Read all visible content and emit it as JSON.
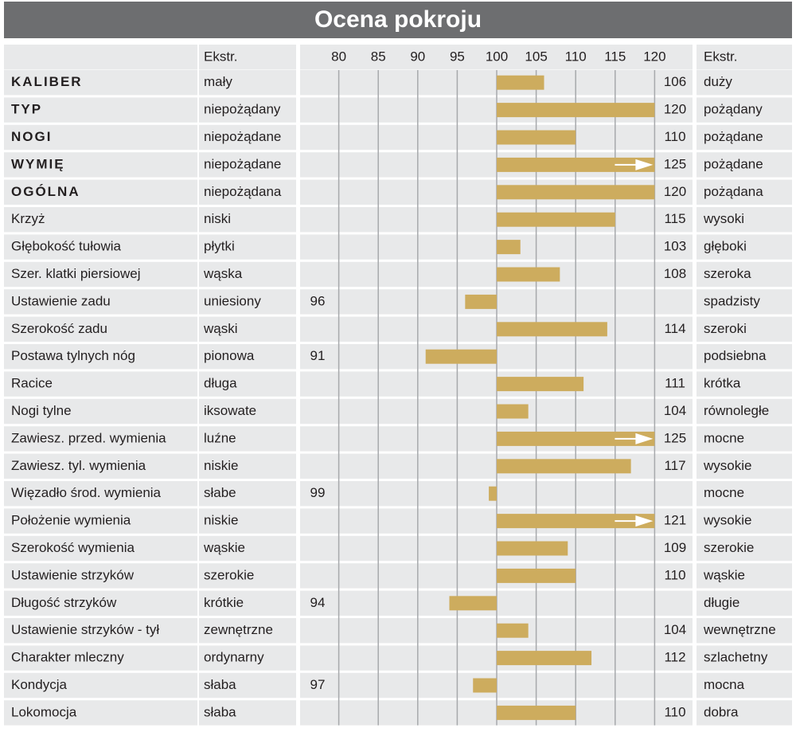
{
  "chart_data": {
    "type": "bar",
    "orientation": "horizontal",
    "title": "Ocena pokroju",
    "header_low": "Ekstr.",
    "header_high": "Ekstr.",
    "categories": [
      "KALIBER",
      "TYP",
      "NOGI",
      "WYMIĘ",
      "OGÓLNA",
      "Krzyż",
      "Głębokość tułowia",
      "Szer. klatki piersiowej",
      "Ustawienie zadu",
      "Szerokość zadu",
      "Postawa tylnych nóg",
      "Racice",
      "Nogi tylne",
      "Zawiesz. przed. wymienia",
      "Zawiesz. tyl. wymienia",
      "Więzadło środ. wymienia",
      "Położenie wymienia",
      "Szerokość wymienia",
      "Ustawienie strzyków",
      "Długość strzyków",
      "Ustawienie strzyków - tył",
      "Charakter mleczny",
      "Kondycja",
      "Lokomocja"
    ],
    "low_labels": [
      "mały",
      "niepożądany",
      "niepożądane",
      "niepożądane",
      "niepożądana",
      "niski",
      "płytki",
      "wąska",
      "uniesiony",
      "wąski",
      "pionowa",
      "długa",
      "iksowate",
      "luźne",
      "niskie",
      "słabe",
      "niskie",
      "wąskie",
      "szerokie",
      "krótkie",
      "zewnętrzne",
      "ordynarny",
      "słaba",
      "słaba"
    ],
    "high_labels": [
      "duży",
      "pożądany",
      "pożądane",
      "pożądane",
      "pożądana",
      "wysoki",
      "głęboki",
      "szeroka",
      "spadzisty",
      "szeroki",
      "podsiebna",
      "krótka",
      "równoległe",
      "mocne",
      "wysokie",
      "mocne",
      "wysokie",
      "szerokie",
      "wąskie",
      "długie",
      "wewnętrzne",
      "szlachetny",
      "mocna",
      "dobra"
    ],
    "values": [
      106,
      120,
      110,
      125,
      120,
      115,
      103,
      108,
      96,
      114,
      91,
      111,
      104,
      125,
      117,
      99,
      121,
      109,
      110,
      94,
      104,
      112,
      97,
      110
    ],
    "color": "#cdac5e",
    "base": 100,
    "xlim": [
      75,
      125
    ],
    "xticks": [
      80,
      85,
      90,
      95,
      100,
      105,
      110,
      115,
      120
    ],
    "grid": true
  }
}
